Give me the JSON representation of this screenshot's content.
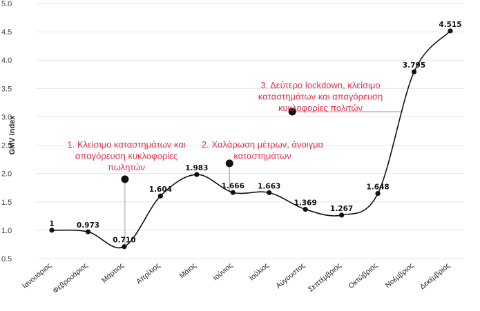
{
  "chart_data": {
    "type": "line",
    "title": "",
    "xlabel": "",
    "ylabel": "GMV index",
    "ylim": [
      0.5,
      5.0
    ],
    "yticks": [
      "0.5",
      "1.0",
      "1.5",
      "2.0",
      "2.5",
      "3.0",
      "3.5",
      "4.0",
      "4.5",
      "5.0"
    ],
    "grid": true,
    "categories": [
      "Ιανουάριος",
      "Φεβρουάριος",
      "Μάρτιος",
      "Απρίλιος",
      "Μάιος",
      "Ιούνιος",
      "Ιούλιος",
      "Αύγουστος",
      "Σεπτέμβριος",
      "Οκτώβριος",
      "Νοέμβριος",
      "Δεκέμβριος"
    ],
    "series": [
      {
        "values": [
          1,
          0.973,
          0.71,
          1.604,
          1.983,
          1.666,
          1.663,
          1.369,
          1.267,
          1.648,
          3.795,
          4.515
        ],
        "labels": [
          "1",
          "0.973",
          "0.710",
          "1.604",
          "1.983",
          "1.666",
          "1.663",
          "1.369",
          "1.267",
          "1.648",
          "3.795",
          "4.515"
        ],
        "color": "#111111"
      }
    ],
    "annotations": [
      {
        "lines": [
          "1. Κλείσιμο καταστημάτων και",
          "απαγόρευση κυκλοφορίες",
          "πωλητών"
        ],
        "marker_category": "Μάρτιος",
        "marker_value": 1.9,
        "target_value": 0.71,
        "color": "#e0314b"
      },
      {
        "lines": [
          "2. Χαλάρωση μέτρων, άνοιγμα",
          "καταστημάτων"
        ],
        "marker_category": "Ιούνιος",
        "marker_value": 2.18,
        "target_value": 1.666,
        "color": "#e0314b"
      },
      {
        "lines": [
          "3. Δεύτερο lockdown, κλείσιμο",
          "καταστημάτων και απαγόρευση",
          "κυκλοφορίες πολιτών"
        ],
        "marker_category": "Αύγουστος",
        "marker_value": 3.09,
        "target_value": 3.09,
        "color": "#e0314b"
      }
    ]
  }
}
